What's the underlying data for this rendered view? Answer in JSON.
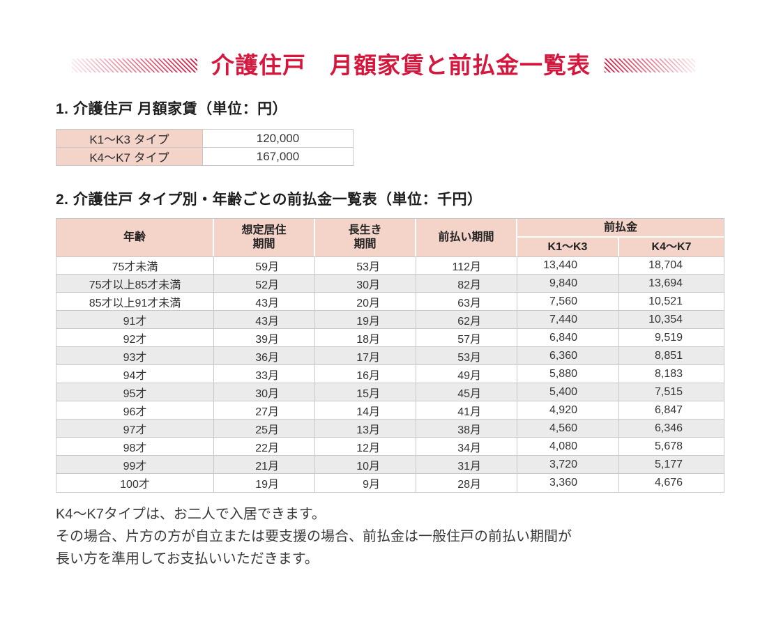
{
  "title": {
    "text": "介護住戸　月額家賃と前払金一覧表"
  },
  "colors": {
    "accent": "#d6173d",
    "header_pink": "#f4d3c8",
    "row_alt": "#ebebeb",
    "border": "#c8c8c8"
  },
  "section1": {
    "heading": "1. 介護住戸 月額家賃（単位：円）",
    "rows": [
      [
        "K1〜K3 タイプ",
        "120,000"
      ],
      [
        "K4〜K7 タイプ",
        "167,000"
      ]
    ]
  },
  "section2": {
    "heading": "2. 介護住戸 タイプ別・年齢ごとの前払金一覧表（単位：千円）",
    "header": {
      "age": "年齢",
      "expected_residence": "想定居住\n期間",
      "longevity": "長生き\n期間",
      "prepay_period": "前払い期間",
      "prepayment": "前払金",
      "k1k3": "K1〜K3",
      "k4k7": "K4〜K7"
    },
    "rows": [
      [
        "75才未満",
        "59月",
        "53月",
        "112月",
        "13,440",
        "18,704"
      ],
      [
        "75才以上85才未満",
        "52月",
        "30月",
        "82月",
        "9,840",
        "13,694"
      ],
      [
        "85才以上91才未満",
        "43月",
        "20月",
        "63月",
        "7,560",
        "10,521"
      ],
      [
        "91才",
        "43月",
        "19月",
        "62月",
        "7,440",
        "10,354"
      ],
      [
        "92才",
        "39月",
        "18月",
        "57月",
        "6,840",
        "9,519"
      ],
      [
        "93才",
        "36月",
        "17月",
        "53月",
        "6,360",
        "8,851"
      ],
      [
        "94才",
        "33月",
        "16月",
        "49月",
        "5,880",
        "8,183"
      ],
      [
        "95才",
        "30月",
        "15月",
        "45月",
        "5,400",
        "7,515"
      ],
      [
        "96才",
        "27月",
        "14月",
        "41月",
        "4,920",
        "6,847"
      ],
      [
        "97才",
        "25月",
        "13月",
        "38月",
        "4,560",
        "6,346"
      ],
      [
        "98才",
        "22月",
        "12月",
        "34月",
        "4,080",
        "5,678"
      ],
      [
        "99才",
        "21月",
        "10月",
        "31月",
        "3,720",
        "5,177"
      ],
      [
        "100才",
        "19月",
        "9月",
        "28月",
        "3,360",
        "4,676"
      ]
    ]
  },
  "notes": {
    "lines": [
      "K4〜K7タイプは、お二人で入居できます。",
      "その場合、片方の方が自立または要支援の場合、前払金は一般住戸の前払い期間が",
      "長い方を準用してお支払いいただきます。"
    ]
  }
}
